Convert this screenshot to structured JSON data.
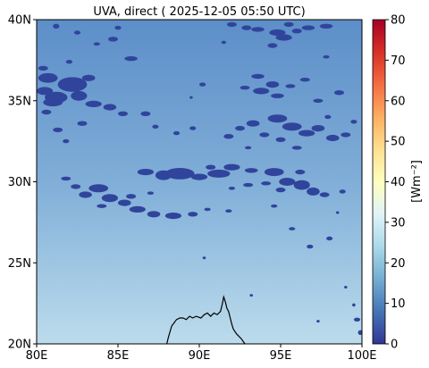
{
  "title": "UVA, direct ( 2025-12-05 05:50 UTC)",
  "map": {
    "lon_range": [
      80,
      100
    ],
    "lat_range": [
      20,
      40
    ],
    "x_ticks": [
      "80E",
      "85E",
      "90E",
      "95E",
      "100E"
    ],
    "x_tick_values": [
      80,
      85,
      90,
      95,
      100
    ],
    "y_ticks": [
      "20N",
      "25N",
      "30N",
      "35N",
      "40N"
    ],
    "y_tick_values": [
      20,
      25,
      30,
      35,
      40
    ],
    "background_gradient": {
      "north": "#5c8ec8",
      "mid": "#80aed8",
      "south": "#bcdcec"
    },
    "cloud_color": "#31449c",
    "coast_color": "#000000"
  },
  "colorbar": {
    "label": "[Wm⁻²]",
    "ticks": [
      "0",
      "10",
      "20",
      "30",
      "40",
      "50",
      "60",
      "70",
      "80"
    ],
    "tick_values": [
      0,
      10,
      20,
      30,
      40,
      50,
      60,
      70,
      80
    ],
    "range": [
      0,
      80
    ],
    "colormap": "RdYlBu_r",
    "stops": [
      "#313695",
      "#4575b4",
      "#74add1",
      "#abd9e9",
      "#e0f3f8",
      "#ffffbf",
      "#fee090",
      "#fdae61",
      "#f46d43",
      "#d73027",
      "#a50026"
    ]
  },
  "clouds": [
    [
      82.2,
      36.0,
      0.9,
      0.45
    ],
    [
      82.6,
      35.3,
      0.5,
      0.3
    ],
    [
      81.2,
      35.2,
      0.7,
      0.35
    ],
    [
      80.7,
      36.4,
      0.6,
      0.3
    ],
    [
      81.0,
      34.9,
      0.6,
      0.25
    ],
    [
      80.5,
      35.6,
      0.5,
      0.25
    ],
    [
      83.5,
      34.8,
      0.5,
      0.2
    ],
    [
      84.5,
      34.6,
      0.4,
      0.2
    ],
    [
      83.2,
      36.4,
      0.4,
      0.2
    ],
    [
      85.3,
      34.2,
      0.3,
      0.15
    ],
    [
      81.3,
      33.2,
      0.3,
      0.15
    ],
    [
      82.8,
      33.6,
      0.3,
      0.15
    ],
    [
      80.6,
      34.3,
      0.3,
      0.15
    ],
    [
      81.8,
      32.5,
      0.2,
      0.12
    ],
    [
      80.4,
      37.0,
      0.3,
      0.15
    ],
    [
      82.0,
      37.4,
      0.2,
      0.12
    ],
    [
      86.7,
      34.2,
      0.3,
      0.15
    ],
    [
      87.3,
      33.4,
      0.2,
      0.12
    ],
    [
      85.8,
      37.6,
      0.4,
      0.15
    ],
    [
      84.7,
      38.8,
      0.3,
      0.15
    ],
    [
      85.0,
      39.5,
      0.2,
      0.12
    ],
    [
      81.2,
      39.6,
      0.2,
      0.15
    ],
    [
      82.5,
      39.2,
      0.2,
      0.12
    ],
    [
      83.7,
      38.5,
      0.2,
      0.1
    ],
    [
      88.6,
      33.0,
      0.2,
      0.12
    ],
    [
      89.6,
      33.3,
      0.2,
      0.12
    ],
    [
      90.2,
      36.0,
      0.2,
      0.12
    ],
    [
      92.0,
      39.7,
      0.3,
      0.15
    ],
    [
      92.9,
      39.5,
      0.3,
      0.15
    ],
    [
      93.6,
      39.4,
      0.4,
      0.15
    ],
    [
      94.8,
      39.2,
      0.5,
      0.2
    ],
    [
      95.2,
      38.9,
      0.5,
      0.2
    ],
    [
      94.5,
      38.4,
      0.3,
      0.15
    ],
    [
      96.0,
      39.3,
      0.3,
      0.15
    ],
    [
      96.7,
      39.5,
      0.4,
      0.15
    ],
    [
      97.8,
      39.6,
      0.4,
      0.15
    ],
    [
      95.5,
      39.7,
      0.3,
      0.15
    ],
    [
      93.6,
      36.5,
      0.4,
      0.15
    ],
    [
      94.5,
      36.0,
      0.4,
      0.2
    ],
    [
      93.8,
      35.6,
      0.5,
      0.2
    ],
    [
      94.8,
      35.3,
      0.4,
      0.15
    ],
    [
      95.6,
      35.9,
      0.3,
      0.12
    ],
    [
      92.8,
      35.8,
      0.3,
      0.12
    ],
    [
      96.5,
      36.3,
      0.3,
      0.12
    ],
    [
      97.8,
      37.7,
      0.2,
      0.1
    ],
    [
      98.6,
      35.5,
      0.3,
      0.15
    ],
    [
      97.3,
      35.0,
      0.3,
      0.12
    ],
    [
      94.8,
      33.9,
      0.6,
      0.25
    ],
    [
      95.7,
      33.4,
      0.6,
      0.25
    ],
    [
      96.6,
      33.0,
      0.5,
      0.2
    ],
    [
      97.3,
      33.3,
      0.4,
      0.2
    ],
    [
      93.3,
      33.6,
      0.4,
      0.2
    ],
    [
      92.5,
      33.3,
      0.3,
      0.15
    ],
    [
      94.0,
      32.9,
      0.3,
      0.15
    ],
    [
      95.0,
      32.6,
      0.3,
      0.15
    ],
    [
      98.2,
      32.7,
      0.4,
      0.2
    ],
    [
      99.0,
      32.9,
      0.3,
      0.15
    ],
    [
      91.8,
      32.8,
      0.3,
      0.15
    ],
    [
      97.9,
      34.0,
      0.2,
      0.12
    ],
    [
      99.5,
      33.7,
      0.2,
      0.12
    ],
    [
      96.0,
      32.1,
      0.3,
      0.12
    ],
    [
      93.0,
      32.1,
      0.2,
      0.1
    ],
    [
      88.8,
      30.5,
      0.9,
      0.35
    ],
    [
      87.8,
      30.4,
      0.5,
      0.3
    ],
    [
      86.7,
      30.6,
      0.5,
      0.2
    ],
    [
      90.0,
      30.3,
      0.5,
      0.2
    ],
    [
      91.2,
      30.5,
      0.7,
      0.25
    ],
    [
      92.0,
      30.9,
      0.5,
      0.2
    ],
    [
      90.7,
      30.9,
      0.3,
      0.15
    ],
    [
      93.2,
      30.7,
      0.4,
      0.15
    ],
    [
      94.6,
      30.6,
      0.6,
      0.25
    ],
    [
      95.4,
      30.0,
      0.5,
      0.25
    ],
    [
      96.3,
      29.8,
      0.5,
      0.3
    ],
    [
      97.0,
      29.4,
      0.4,
      0.25
    ],
    [
      97.7,
      29.2,
      0.3,
      0.15
    ],
    [
      98.8,
      29.4,
      0.2,
      0.12
    ],
    [
      96.2,
      30.6,
      0.3,
      0.15
    ],
    [
      95.0,
      29.5,
      0.3,
      0.15
    ],
    [
      94.1,
      29.9,
      0.3,
      0.12
    ],
    [
      93.0,
      29.8,
      0.3,
      0.12
    ],
    [
      92.0,
      29.6,
      0.2,
      0.1
    ],
    [
      83.8,
      29.6,
      0.6,
      0.25
    ],
    [
      84.5,
      29.0,
      0.5,
      0.25
    ],
    [
      83.0,
      29.2,
      0.4,
      0.2
    ],
    [
      82.4,
      29.7,
      0.3,
      0.15
    ],
    [
      85.4,
      28.7,
      0.4,
      0.2
    ],
    [
      86.2,
      28.3,
      0.5,
      0.2
    ],
    [
      87.2,
      28.0,
      0.4,
      0.2
    ],
    [
      88.4,
      27.9,
      0.5,
      0.2
    ],
    [
      89.6,
      28.0,
      0.3,
      0.15
    ],
    [
      85.8,
      29.1,
      0.3,
      0.15
    ],
    [
      84.0,
      28.5,
      0.3,
      0.12
    ],
    [
      81.8,
      30.2,
      0.3,
      0.12
    ],
    [
      87.0,
      29.3,
      0.2,
      0.1
    ],
    [
      90.5,
      28.3,
      0.2,
      0.1
    ],
    [
      91.8,
      28.2,
      0.2,
      0.1
    ],
    [
      94.6,
      28.5,
      0.2,
      0.1
    ],
    [
      95.7,
      27.1,
      0.2,
      0.1
    ],
    [
      98.0,
      26.5,
      0.2,
      0.12
    ],
    [
      96.8,
      26.0,
      0.2,
      0.12
    ],
    [
      90.3,
      25.3,
      0.1,
      0.08
    ],
    [
      93.2,
      23.0,
      0.1,
      0.08
    ],
    [
      99.0,
      23.5,
      0.1,
      0.08
    ],
    [
      99.7,
      21.5,
      0.2,
      0.12
    ],
    [
      99.5,
      22.4,
      0.1,
      0.1
    ],
    [
      99.9,
      20.7,
      0.15,
      0.15
    ],
    [
      97.3,
      21.4,
      0.1,
      0.08
    ],
    [
      98.5,
      28.1,
      0.1,
      0.08
    ],
    [
      89.5,
      35.2,
      0.1,
      0.08
    ],
    [
      91.5,
      38.6,
      0.15,
      0.1
    ]
  ],
  "coastline": [
    [
      88.0,
      20.0
    ],
    [
      88.1,
      20.4
    ],
    [
      88.3,
      21.1
    ],
    [
      88.6,
      21.5
    ],
    [
      88.8,
      21.6
    ],
    [
      89.0,
      21.6
    ],
    [
      89.2,
      21.5
    ],
    [
      89.4,
      21.7
    ],
    [
      89.6,
      21.6
    ],
    [
      89.8,
      21.7
    ],
    [
      90.1,
      21.6
    ],
    [
      90.3,
      21.8
    ],
    [
      90.5,
      21.9
    ],
    [
      90.7,
      21.7
    ],
    [
      90.9,
      21.9
    ],
    [
      91.1,
      21.8
    ],
    [
      91.3,
      22.0
    ],
    [
      91.4,
      22.4
    ],
    [
      91.5,
      22.9
    ],
    [
      91.6,
      22.6
    ],
    [
      91.7,
      22.2
    ],
    [
      91.8,
      22.0
    ],
    [
      91.9,
      21.6
    ],
    [
      92.0,
      21.2
    ],
    [
      92.1,
      20.9
    ],
    [
      92.3,
      20.6
    ],
    [
      92.6,
      20.3
    ],
    [
      92.8,
      20.0
    ]
  ]
}
